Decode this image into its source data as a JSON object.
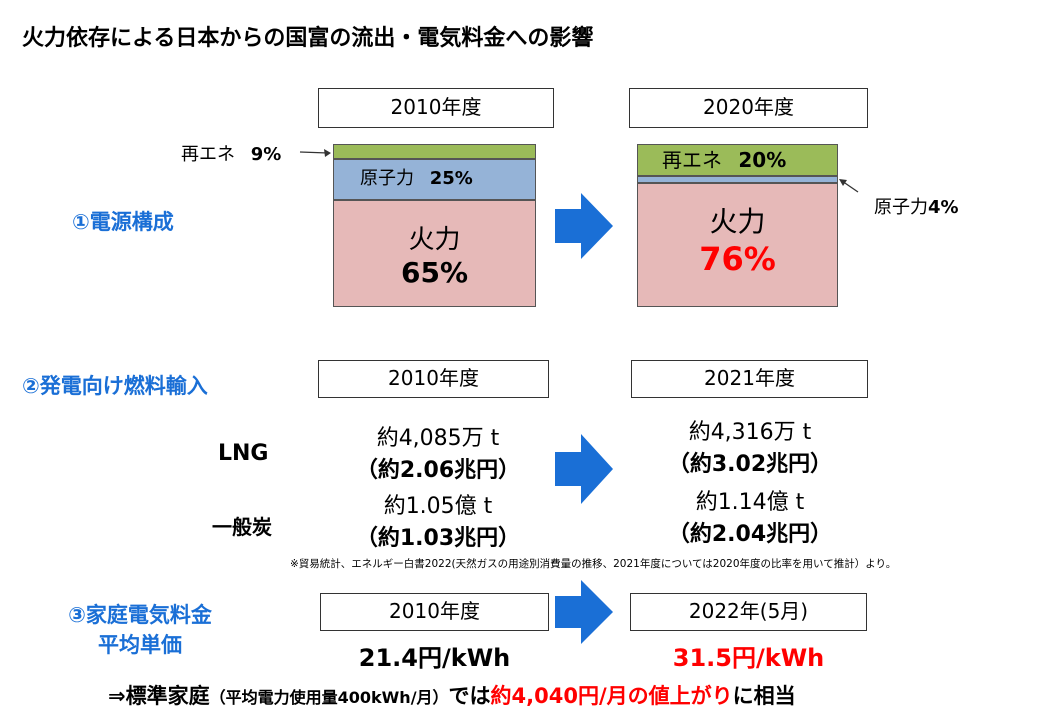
{
  "title": "火力依存による日本からの国富の流出・電気料金への影響",
  "section1": {
    "label": "①電源構成",
    "left_year": "2010年度",
    "right_year": "2020年度",
    "left": {
      "renewable_label": "再エネ",
      "renewable_pct": "9%",
      "nuclear_label": "原子力",
      "nuclear_pct": "25%",
      "thermal_label": "火力",
      "thermal_pct": "65%"
    },
    "right": {
      "renewable_label": "再エネ",
      "renewable_pct": "20%",
      "nuclear_label": "原子力",
      "nuclear_pct": "4%",
      "thermal_label": "火力",
      "thermal_pct": "76%"
    },
    "colors": {
      "renewable": "#9bbb59",
      "nuclear": "#95b3d7",
      "thermal": "#e6b9b8"
    }
  },
  "section2": {
    "label": "②発電向け燃料輸入",
    "left_year": "2010年度",
    "right_year": "2021年度",
    "lng_label": "LNG",
    "coal_label": "一般炭",
    "lng_2010_qty": "約4,085万 t",
    "lng_2010_cost": "（約2.06兆円）",
    "lng_2021_qty": "約4,316万 t",
    "lng_2021_cost": "（約3.02兆円）",
    "coal_2010_qty": "約1.05億 t",
    "coal_2010_cost": "（約1.03兆円）",
    "coal_2021_qty": "約1.14億 t",
    "coal_2021_cost": "（約2.04兆円）",
    "note": "※貿易統計、エネルギー白書2022(天然ガスの用途別消費量の推移、2021年度については2020年度の比率を用いて推計）より。"
  },
  "section3": {
    "label_line1": "③家庭電気料金",
    "label_line2": "平均単価",
    "left_year": "2010年度",
    "right_year": "2022年(5月)",
    "left_price": "21.4円/kWh",
    "right_price": "31.5円/kWh"
  },
  "conclusion": {
    "prefix": "⇒標準家庭",
    "paren": "（平均電力使用量400kWh/月）",
    "mid": "では",
    "highlight": "約4,040円/月の値上がり",
    "suffix": "に相当"
  },
  "accent_color": "#1a6fd6"
}
